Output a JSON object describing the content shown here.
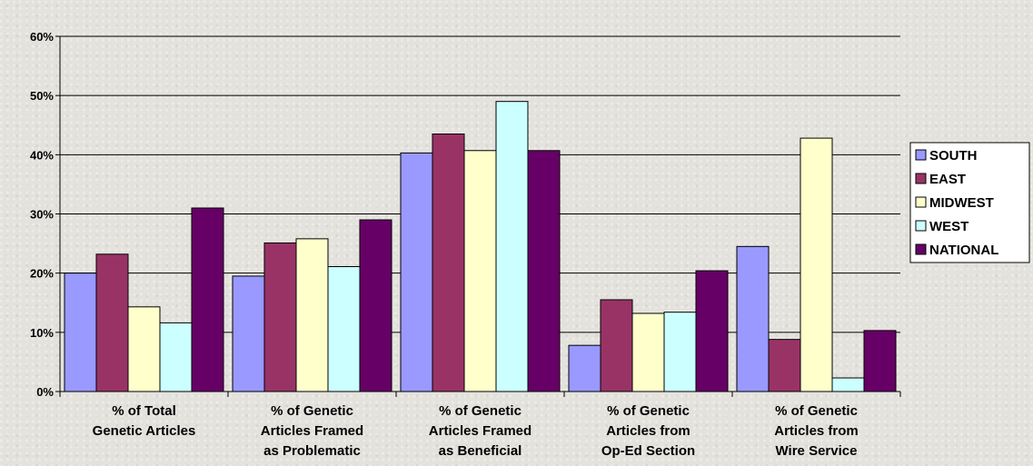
{
  "chart_data": {
    "type": "bar",
    "categories": [
      [
        "% of Total",
        "Genetic Articles"
      ],
      [
        "% of Genetic",
        "Articles Framed",
        "as Problematic"
      ],
      [
        "% of Genetic",
        "Articles Framed",
        "as Beneficial"
      ],
      [
        "% of Genetic",
        "Articles from",
        "Op-Ed Section"
      ],
      [
        "% of Genetic",
        "Articles from",
        "Wire Service"
      ]
    ],
    "series": [
      {
        "name": "SOUTH",
        "color": "#9999ff",
        "values": [
          20.0,
          19.5,
          40.3,
          7.8,
          24.5
        ]
      },
      {
        "name": "EAST",
        "color": "#993366",
        "values": [
          23.2,
          25.1,
          43.5,
          15.5,
          8.8
        ]
      },
      {
        "name": "MIDWEST",
        "color": "#ffffcc",
        "values": [
          14.3,
          25.8,
          40.7,
          13.2,
          42.8
        ]
      },
      {
        "name": "WEST",
        "color": "#ccffff",
        "values": [
          11.6,
          21.1,
          49.0,
          13.4,
          2.3
        ]
      },
      {
        "name": "NATIONAL",
        "color": "#660066",
        "values": [
          31.0,
          29.0,
          40.7,
          20.4,
          10.3
        ]
      }
    ],
    "y_ticks": [
      "0%",
      "10%",
      "20%",
      "30%",
      "40%",
      "50%",
      "60%"
    ],
    "ylim": [
      0,
      60
    ],
    "grid": true,
    "legend": "right"
  }
}
